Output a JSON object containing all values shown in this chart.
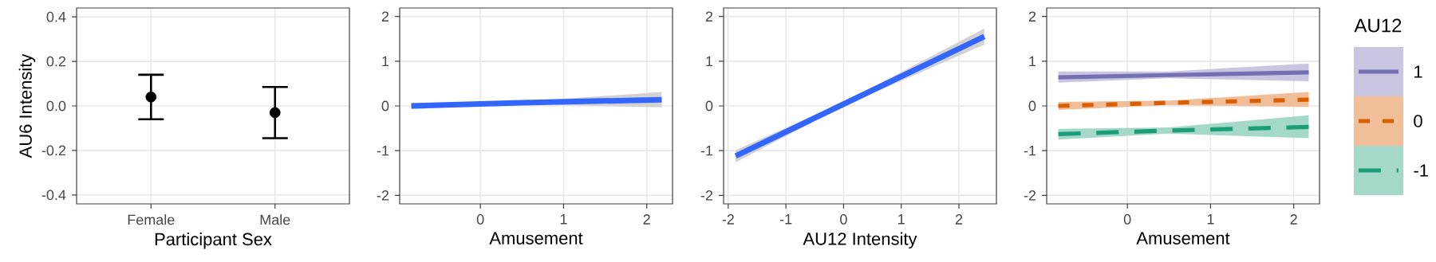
{
  "chart_data": [
    {
      "type": "scatter",
      "categories": [
        "Female",
        "Male"
      ],
      "values": [
        0.04,
        -0.03
      ],
      "errors": [
        0.1,
        0.115
      ],
      "color": "#000000",
      "marker": "circle",
      "xlabel": "Participant Sex",
      "ylabel": "AU6 Intensity",
      "ylim": [
        -0.44,
        0.44
      ],
      "yticks": [
        -0.4,
        -0.2,
        {
          "value": 0,
          "label": "0.0"
        },
        0.2,
        0.4
      ],
      "grid": true
    },
    {
      "type": "line",
      "x": [
        -0.83,
        0.5,
        2.18
      ],
      "series": [
        {
          "color": "#3366ff",
          "values": [
            0.0,
            0.07,
            0.14
          ],
          "lower": [
            -0.07,
            0.04,
            -0.03
          ],
          "upper": [
            0.06,
            0.1,
            0.31
          ]
        }
      ],
      "xlabel": "Amusement",
      "xlim": [
        -0.97,
        2.31
      ],
      "xticks": [
        0,
        1,
        2
      ],
      "ylim": [
        -2.19,
        2.19
      ],
      "yticks": [
        -2,
        -1,
        0,
        1,
        2
      ],
      "grid": true
    },
    {
      "type": "line",
      "x": [
        -1.87,
        0,
        2.44
      ],
      "series": [
        {
          "color": "#3366ff",
          "values": [
            -1.12,
            0.04,
            1.55
          ],
          "lower": [
            -1.26,
            0.0,
            1.37
          ],
          "upper": [
            -0.99,
            0.08,
            1.73
          ]
        }
      ],
      "xlabel": "AU12 Intensity",
      "xlim": [
        -2.08,
        2.65
      ],
      "xticks": [
        -2,
        -1,
        0,
        1,
        2
      ],
      "ylim": [
        -2.19,
        2.19
      ],
      "yticks": [
        -2,
        -1,
        0,
        1,
        2
      ],
      "grid": true
    },
    {
      "type": "line",
      "x": [
        -0.83,
        0.5,
        2.18
      ],
      "series": [
        {
          "name": "1",
          "color": "#7570b3",
          "line_style": "solid",
          "values": [
            0.64,
            0.69,
            0.75
          ],
          "lower": [
            0.52,
            0.62,
            0.55
          ],
          "upper": [
            0.77,
            0.77,
            0.95
          ]
        },
        {
          "name": "0",
          "color": "#d95f02",
          "line_style": "dashed",
          "values": [
            0.0,
            0.07,
            0.14
          ],
          "lower": [
            -0.09,
            0.02,
            -0.02
          ],
          "upper": [
            0.09,
            0.12,
            0.31
          ]
        },
        {
          "name": "-1",
          "color": "#1b9e77",
          "line_style": "dashed",
          "values": [
            -0.63,
            -0.55,
            -0.47
          ],
          "lower": [
            -0.75,
            -0.62,
            -0.72
          ],
          "upper": [
            -0.51,
            -0.48,
            -0.21
          ]
        }
      ],
      "xlabel": "Amusement",
      "xlim": [
        -0.97,
        2.31
      ],
      "xticks": [
        0,
        1,
        2
      ],
      "ylim": [
        -2.19,
        2.19
      ],
      "yticks": [
        -2,
        -1,
        0,
        1,
        2
      ],
      "grid": true,
      "legend": "right",
      "legend_title": "AU12"
    }
  ]
}
